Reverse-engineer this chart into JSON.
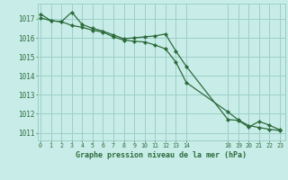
{
  "background_color": "#c8ede8",
  "grid_color": "#9dcfc8",
  "line_color": "#2d6b3c",
  "marker_color": "#2d6b3c",
  "title": "Graphe pression niveau de la mer (hPa)",
  "ylabel_ticks": [
    1011,
    1012,
    1013,
    1014,
    1015,
    1016,
    1017
  ],
  "xtick_labels": [
    "0",
    "1",
    "2",
    "3",
    "4",
    "5",
    "6",
    "7",
    "8",
    "9",
    "10",
    "11",
    "12",
    "13",
    "14",
    "18",
    "19",
    "20",
    "21",
    "22",
    "23"
  ],
  "xtick_positions": [
    0,
    1,
    2,
    3,
    4,
    5,
    6,
    7,
    8,
    9,
    10,
    11,
    12,
    13,
    14,
    18,
    19,
    20,
    21,
    22,
    23
  ],
  "xlim": [
    -0.3,
    23.5
  ],
  "ylim": [
    1010.6,
    1017.8
  ],
  "series1_x": [
    0,
    1,
    2,
    3,
    4,
    5,
    6,
    7,
    8,
    9,
    10,
    11,
    12,
    13,
    14,
    18,
    19,
    20,
    21,
    22,
    23
  ],
  "series1_y": [
    1017.25,
    1016.9,
    1016.85,
    1017.35,
    1016.7,
    1016.5,
    1016.35,
    1016.15,
    1015.95,
    1016.0,
    1016.05,
    1016.1,
    1016.2,
    1015.3,
    1014.5,
    1011.7,
    1011.65,
    1011.3,
    1011.6,
    1011.4,
    1011.15
  ],
  "series2_x": [
    0,
    1,
    2,
    3,
    4,
    5,
    6,
    7,
    8,
    9,
    10,
    11,
    12,
    13,
    14,
    18,
    19,
    20,
    21,
    22,
    23
  ],
  "series2_y": [
    1017.05,
    1016.9,
    1016.85,
    1016.65,
    1016.55,
    1016.4,
    1016.3,
    1016.05,
    1015.88,
    1015.82,
    1015.78,
    1015.62,
    1015.42,
    1014.72,
    1013.65,
    1012.1,
    1011.68,
    1011.38,
    1011.28,
    1011.18,
    1011.12
  ]
}
